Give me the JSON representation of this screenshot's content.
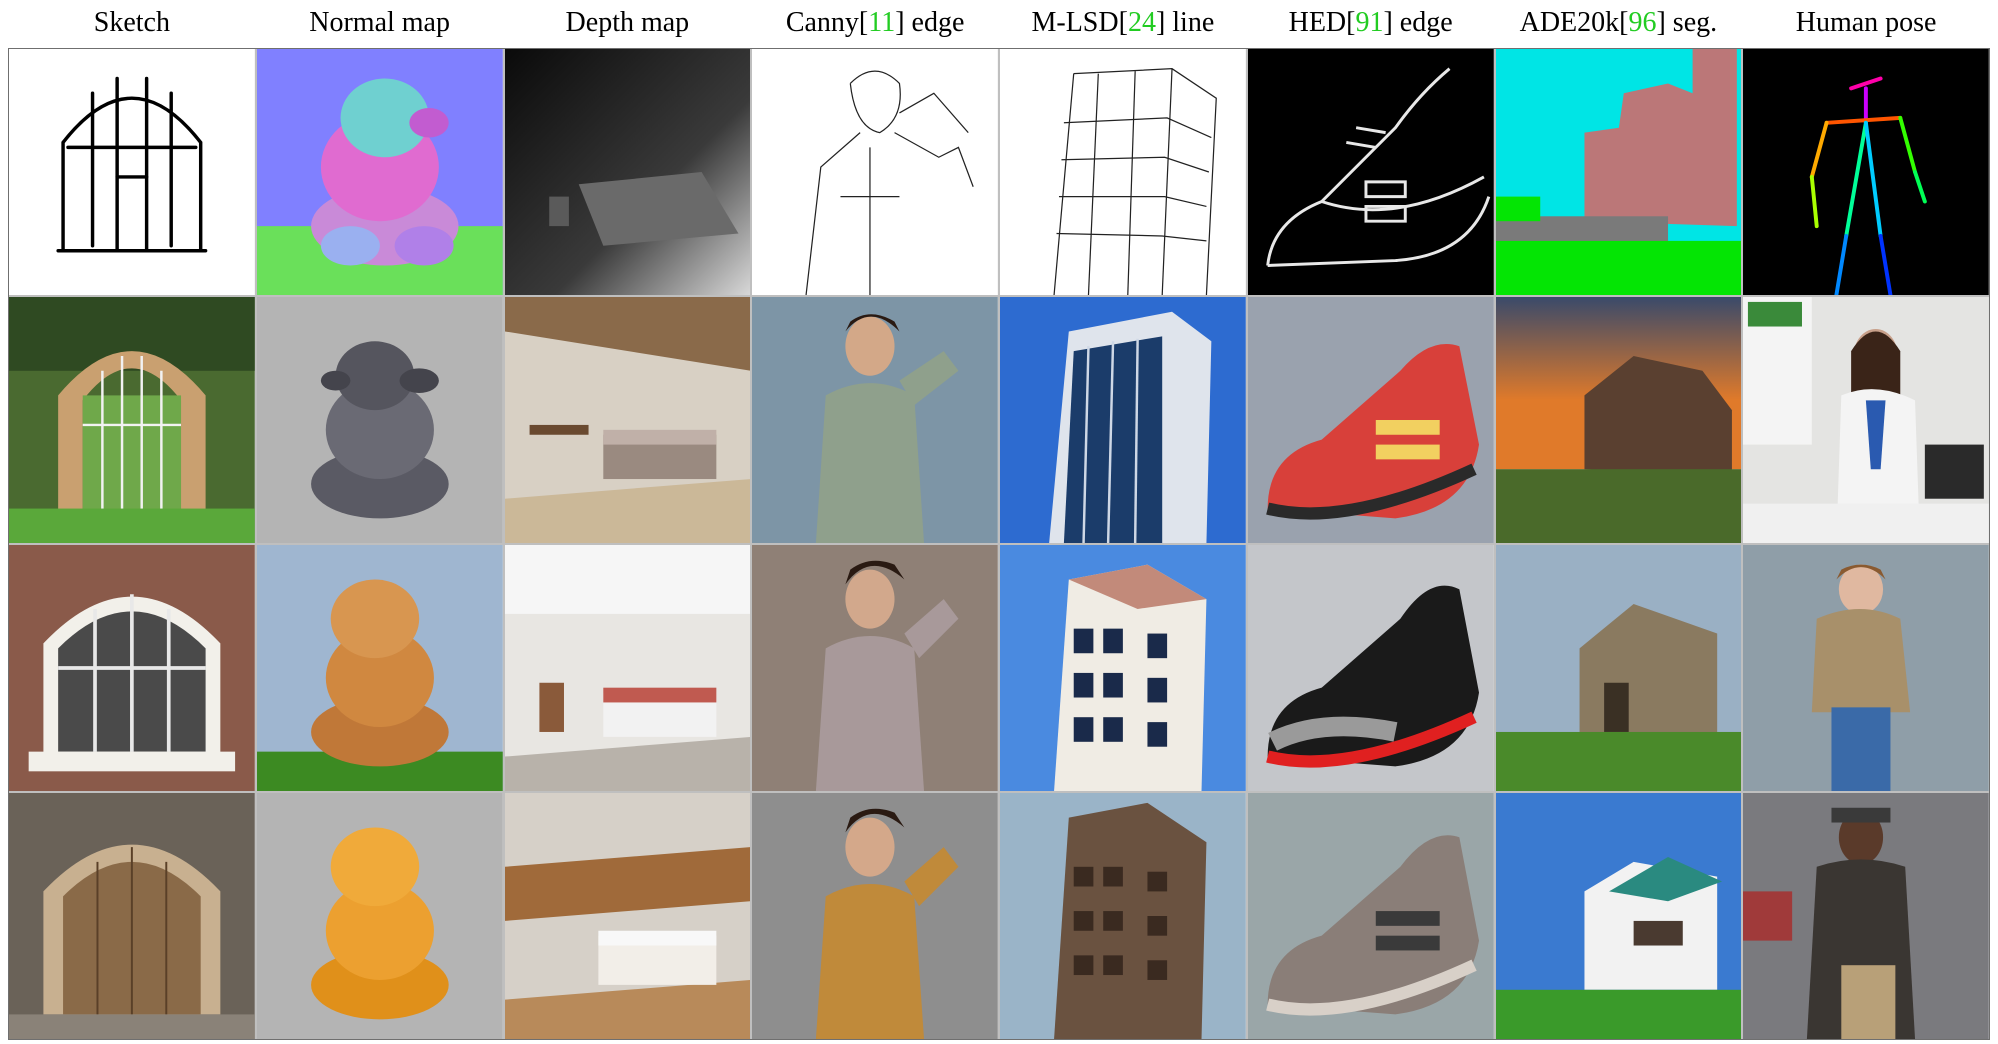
{
  "columns": [
    {
      "pre": "Sketch",
      "ref": "",
      "post": ""
    },
    {
      "pre": "Normal map",
      "ref": "",
      "post": ""
    },
    {
      "pre": "Depth map",
      "ref": "",
      "post": ""
    },
    {
      "pre": "Canny[",
      "ref": "11",
      "post": "] edge"
    },
    {
      "pre": "M-LSD[",
      "ref": "24",
      "post": "] line"
    },
    {
      "pre": "HED[",
      "ref": "91",
      "post": "] edge"
    },
    {
      "pre": "ADE20k[",
      "ref": "96",
      "post": "] seg."
    },
    {
      "pre": "Human pose",
      "ref": "",
      "post": ""
    }
  ],
  "colors": {
    "citation": "#22cc22"
  },
  "rows": 4
}
